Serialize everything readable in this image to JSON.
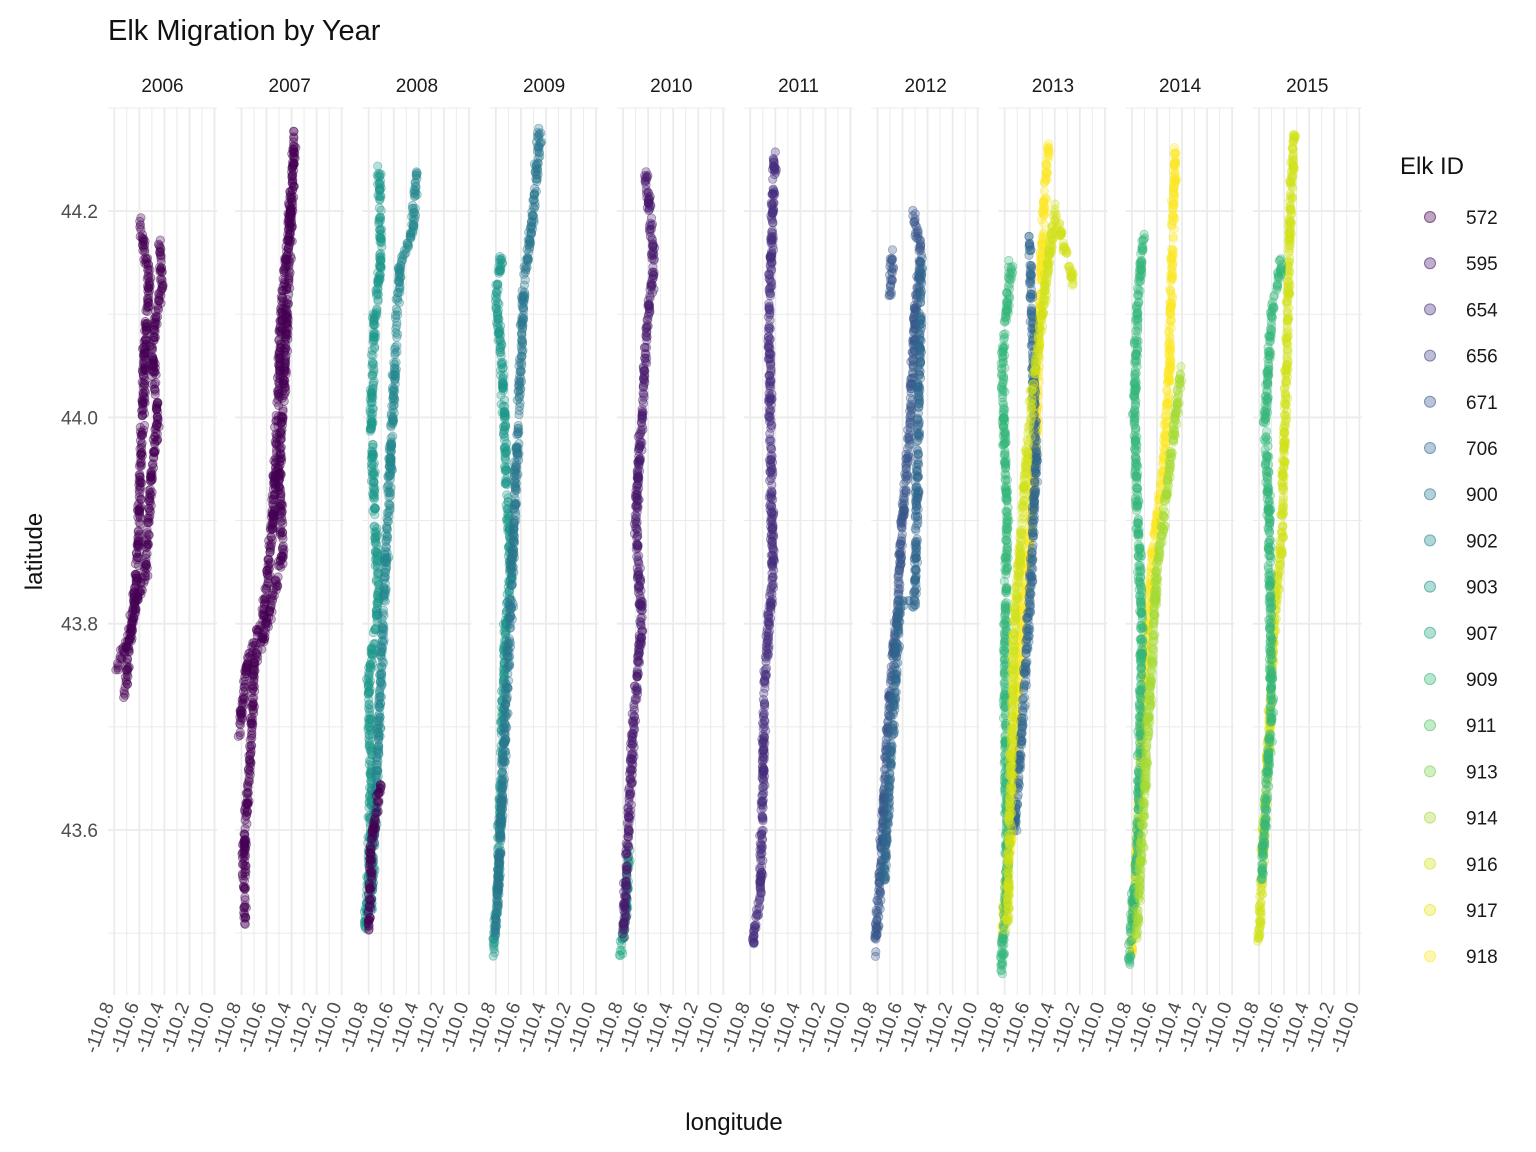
{
  "chart_data": {
    "type": "scatter",
    "title": "Elk Migration by Year",
    "xlabel": "longitude",
    "ylabel": "latitude",
    "facets": [
      "2006",
      "2007",
      "2008",
      "2009",
      "2010",
      "2011",
      "2012",
      "2013",
      "2014",
      "2015"
    ],
    "xlim": [
      -110.85,
      -109.98
    ],
    "ylim": [
      43.44,
      44.3
    ],
    "x_ticks": [
      -110.8,
      -110.6,
      -110.4,
      -110.2,
      -110.0
    ],
    "x_tick_labels": [
      "-110.8",
      "-110.6",
      "-110.4",
      "-110.2",
      "-110.0"
    ],
    "y_ticks": [
      43.6,
      43.8,
      44.0,
      44.2
    ],
    "y_tick_labels": [
      "43.6",
      "43.8",
      "44.0",
      "44.2"
    ],
    "grid": true,
    "legend": {
      "title": "Elk ID",
      "position": "right",
      "entries": [
        {
          "id": "572",
          "color": "#440154"
        },
        {
          "id": "595",
          "color": "#481A6C"
        },
        {
          "id": "654",
          "color": "#472F7D"
        },
        {
          "id": "656",
          "color": "#414487"
        },
        {
          "id": "671",
          "color": "#39568C"
        },
        {
          "id": "706",
          "color": "#31688E"
        },
        {
          "id": "900",
          "color": "#2A788E"
        },
        {
          "id": "902",
          "color": "#23888E"
        },
        {
          "id": "903",
          "color": "#1F988B"
        },
        {
          "id": "907",
          "color": "#22A884"
        },
        {
          "id": "909",
          "color": "#35B779"
        },
        {
          "id": "911",
          "color": "#54C568"
        },
        {
          "id": "913",
          "color": "#7AD151"
        },
        {
          "id": "914",
          "color": "#A5DB36"
        },
        {
          "id": "916",
          "color": "#D2E21B"
        },
        {
          "id": "917",
          "color": "#E5E419"
        },
        {
          "id": "918",
          "color": "#FDE725"
        }
      ]
    },
    "panels": [
      {
        "year": "2006",
        "tracks": [
          {
            "id": "572",
            "color": "#440154",
            "path": [
              [
                -110.78,
                43.755
              ],
              [
                -110.68,
                43.79
              ],
              [
                -110.62,
                43.82
              ],
              [
                -110.55,
                43.85
              ],
              [
                -110.5,
                43.95
              ],
              [
                -110.45,
                44.0
              ],
              [
                -110.5,
                44.07
              ],
              [
                -110.42,
                44.13
              ],
              [
                -110.44,
                44.17
              ]
            ]
          },
          {
            "id": "572",
            "color": "#440154",
            "path": [
              [
                -110.72,
                43.73
              ],
              [
                -110.62,
                43.85
              ],
              [
                -110.55,
                44.08
              ],
              [
                -110.52,
                44.14
              ],
              [
                -110.6,
                44.19
              ]
            ]
          }
        ]
      },
      {
        "year": "2007",
        "tracks": [
          {
            "id": "572",
            "color": "#440154",
            "path": [
              [
                -110.77,
                43.51
              ],
              [
                -110.78,
                43.58
              ],
              [
                -110.72,
                43.69
              ],
              [
                -110.7,
                43.76
              ],
              [
                -110.6,
                43.8
              ],
              [
                -110.52,
                43.84
              ],
              [
                -110.47,
                43.87
              ],
              [
                -110.5,
                43.95
              ],
              [
                -110.45,
                44.05
              ],
              [
                -110.42,
                44.15
              ],
              [
                -110.4,
                44.2
              ],
              [
                -110.38,
                44.28
              ]
            ]
          },
          {
            "id": "572",
            "color": "#440154",
            "path": [
              [
                -110.82,
                43.69
              ],
              [
                -110.76,
                43.76
              ],
              [
                -110.62,
                43.81
              ],
              [
                -110.55,
                43.9
              ],
              [
                -110.48,
                44.1
              ],
              [
                -110.4,
                44.22
              ]
            ]
          }
        ]
      },
      {
        "year": "2008",
        "tracks": [
          {
            "id": "903",
            "color": "#1F988B",
            "path": [
              [
                -110.83,
                43.5
              ],
              [
                -110.8,
                43.55
              ],
              [
                -110.78,
                43.65
              ],
              [
                -110.8,
                43.75
              ],
              [
                -110.72,
                43.82
              ],
              [
                -110.75,
                43.9
              ],
              [
                -110.78,
                44.0
              ],
              [
                -110.75,
                44.1
              ],
              [
                -110.7,
                44.15
              ],
              [
                -110.72,
                44.24
              ]
            ]
          },
          {
            "id": "902",
            "color": "#23888E",
            "path": [
              [
                -110.78,
                43.52
              ],
              [
                -110.68,
                43.82
              ],
              [
                -110.55,
                44.15
              ],
              [
                -110.45,
                44.18
              ],
              [
                -110.42,
                44.24
              ]
            ]
          },
          {
            "id": "572",
            "color": "#440154",
            "path": [
              [
                -110.8,
                43.5
              ],
              [
                -110.78,
                43.58
              ],
              [
                -110.7,
                43.65
              ]
            ]
          }
        ]
      },
      {
        "year": "2009",
        "tracks": [
          {
            "id": "903",
            "color": "#1F988B",
            "path": [
              [
                -110.82,
                43.48
              ],
              [
                -110.78,
                43.55
              ],
              [
                -110.75,
                43.7
              ],
              [
                -110.72,
                43.8
              ],
              [
                -110.68,
                43.85
              ],
              [
                -110.72,
                43.95
              ],
              [
                -110.75,
                44.05
              ],
              [
                -110.8,
                44.12
              ],
              [
                -110.75,
                44.16
              ]
            ]
          },
          {
            "id": "900",
            "color": "#2A788E",
            "path": [
              [
                -110.8,
                43.5
              ],
              [
                -110.68,
                43.82
              ],
              [
                -110.58,
                44.12
              ],
              [
                -110.5,
                44.2
              ],
              [
                -110.45,
                44.28
              ]
            ]
          }
        ]
      },
      {
        "year": "2010",
        "tracks": [
          {
            "id": "907",
            "color": "#22A884",
            "path": [
              [
                -110.82,
                43.48
              ],
              [
                -110.78,
                43.52
              ],
              [
                -110.75,
                43.58
              ]
            ]
          },
          {
            "id": "595",
            "color": "#481A6C",
            "path": [
              [
                -110.8,
                43.49
              ],
              [
                -110.72,
                43.7
              ],
              [
                -110.65,
                43.8
              ],
              [
                -110.7,
                43.9
              ],
              [
                -110.6,
                44.1
              ],
              [
                -110.55,
                44.15
              ],
              [
                -110.62,
                44.24
              ]
            ]
          }
        ]
      },
      {
        "year": "2011",
        "tracks": [
          {
            "id": "654",
            "color": "#472F7D",
            "path": [
              [
                -110.78,
                43.49
              ],
              [
                -110.72,
                43.54
              ],
              [
                -110.68,
                43.75
              ],
              [
                -110.62,
                43.85
              ],
              [
                -110.64,
                44.0
              ],
              [
                -110.65,
                44.1
              ],
              [
                -110.62,
                44.2
              ],
              [
                -110.6,
                44.26
              ]
            ]
          }
        ]
      },
      {
        "year": "2012",
        "tracks": [
          {
            "id": "671",
            "color": "#39568C",
            "path": [
              [
                -110.82,
                43.48
              ],
              [
                -110.78,
                43.55
              ],
              [
                -110.72,
                43.7
              ],
              [
                -110.65,
                43.8
              ],
              [
                -110.6,
                43.9
              ],
              [
                -110.55,
                43.98
              ],
              [
                -110.5,
                44.1
              ],
              [
                -110.45,
                44.16
              ],
              [
                -110.52,
                44.2
              ]
            ]
          },
          {
            "id": "706",
            "color": "#31688E",
            "path": [
              [
                -110.75,
                43.55
              ],
              [
                -110.62,
                43.82
              ],
              [
                -110.5,
                43.82
              ],
              [
                -110.45,
                44.15
              ]
            ]
          },
          {
            "id": "671",
            "color": "#39568C",
            "path": [
              [
                -110.7,
                44.12
              ],
              [
                -110.68,
                44.16
              ]
            ]
          }
        ]
      },
      {
        "year": "2013",
        "tracks": [
          {
            "id": "918",
            "color": "#FDE725",
            "path": [
              [
                -110.82,
                43.5
              ],
              [
                -110.75,
                43.6
              ],
              [
                -110.7,
                43.72
              ],
              [
                -110.65,
                43.82
              ],
              [
                -110.6,
                43.88
              ],
              [
                -110.55,
                43.98
              ],
              [
                -110.52,
                44.1
              ],
              [
                -110.48,
                44.22
              ],
              [
                -110.45,
                44.26
              ]
            ]
          },
          {
            "id": "909",
            "color": "#35B779",
            "path": [
              [
                -110.83,
                43.46
              ],
              [
                -110.78,
                43.56
              ],
              [
                -110.8,
                43.75
              ],
              [
                -110.78,
                43.9
              ],
              [
                -110.82,
                44.05
              ],
              [
                -110.75,
                44.15
              ]
            ]
          },
          {
            "id": "706",
            "color": "#31688E",
            "path": [
              [
                -110.72,
                43.6
              ],
              [
                -110.6,
                43.82
              ],
              [
                -110.55,
                43.95
              ],
              [
                -110.6,
                44.18
              ]
            ]
          },
          {
            "id": "916",
            "color": "#D2E21B",
            "path": [
              [
                -110.78,
                43.5
              ],
              [
                -110.72,
                43.8
              ],
              [
                -110.6,
                44.0
              ],
              [
                -110.4,
                44.2
              ],
              [
                -110.25,
                44.13
              ]
            ]
          }
        ]
      },
      {
        "year": "2014",
        "tracks": [
          {
            "id": "918",
            "color": "#FDE725",
            "path": [
              [
                -110.8,
                43.48
              ],
              [
                -110.75,
                43.6
              ],
              [
                -110.7,
                43.75
              ],
              [
                -110.65,
                43.85
              ],
              [
                -110.55,
                43.95
              ],
              [
                -110.5,
                44.05
              ],
              [
                -110.48,
                44.15
              ],
              [
                -110.45,
                44.26
              ]
            ]
          },
          {
            "id": "909",
            "color": "#35B779",
            "path": [
              [
                -110.82,
                43.47
              ],
              [
                -110.75,
                43.6
              ],
              [
                -110.72,
                43.8
              ],
              [
                -110.78,
                44.0
              ],
              [
                -110.75,
                44.12
              ],
              [
                -110.7,
                44.18
              ]
            ]
          },
          {
            "id": "914",
            "color": "#A5DB36",
            "path": [
              [
                -110.76,
                43.5
              ],
              [
                -110.6,
                43.85
              ],
              [
                -110.45,
                44.0
              ],
              [
                -110.4,
                44.05
              ]
            ]
          }
        ]
      },
      {
        "year": "2015",
        "tracks": [
          {
            "id": "916",
            "color": "#D2E21B",
            "path": [
              [
                -110.8,
                43.49
              ],
              [
                -110.78,
                43.55
              ],
              [
                -110.72,
                43.7
              ],
              [
                -110.68,
                43.8
              ],
              [
                -110.62,
                43.88
              ],
              [
                -110.58,
                44.05
              ],
              [
                -110.55,
                44.2
              ],
              [
                -110.52,
                44.28
              ]
            ]
          },
          {
            "id": "909",
            "color": "#35B779",
            "path": [
              [
                -110.78,
                43.55
              ],
              [
                -110.7,
                43.72
              ],
              [
                -110.72,
                43.9
              ],
              [
                -110.75,
                44.0
              ],
              [
                -110.7,
                44.1
              ],
              [
                -110.62,
                44.15
              ]
            ]
          }
        ]
      }
    ]
  }
}
